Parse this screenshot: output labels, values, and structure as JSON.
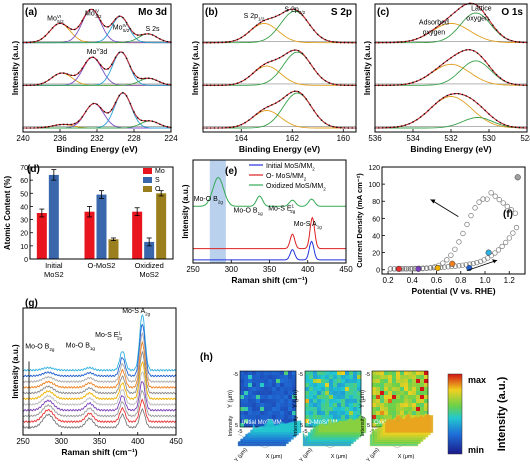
{
  "panels": {
    "a": {
      "letter": "(a)",
      "title": "Mo 3d",
      "xlabel": "Binding Energy (eV)",
      "ylabel": "Intensity (a.u.)",
      "xticks": [
        "240",
        "236",
        "232",
        "228",
        "224"
      ],
      "annotations": [
        {
          "base": "Mo",
          "sup": "VI",
          "tail": "3d",
          "sub": "5/2",
          "pre": "",
          "x": 236.5,
          "off": 0.87
        },
        {
          "base": "Mo",
          "sup": "IV",
          "tail": "3d",
          "sub": "3/2",
          "pre": "",
          "x": 232.4,
          "off": 0.91
        },
        {
          "base": "Mo",
          "sup": "IV",
          "tail": "3d",
          "sub": "5/2",
          "pre": "",
          "x": 229.4,
          "off": 0.8
        },
        {
          "base": "S 2s",
          "sup": "",
          "tail": "",
          "sub": "",
          "pre": "",
          "x": 226.0,
          "off": 0.79
        },
        {
          "base": "Mo",
          "sup": "V",
          "tail": "3d",
          "sub": "",
          "pre": "",
          "x": 232.0,
          "off": 0.61
        }
      ],
      "chart_data": {
        "type": "line",
        "xlim": [
          240,
          224
        ],
        "note": "three stacked XPS spectra with fitted components",
        "series": [
          {
            "peaks": [
              {
                "c": 236.0,
                "h": 0.55,
                "w": 1.1
              },
              {
                "c": 232.6,
                "h": 0.95,
                "w": 1.0
              },
              {
                "c": 229.5,
                "h": 0.75,
                "w": 0.9
              },
              {
                "c": 226.5,
                "h": 0.25,
                "w": 1.0
              }
            ]
          },
          {
            "peaks": [
              {
                "c": 235.8,
                "h": 0.35,
                "w": 1.1
              },
              {
                "c": 232.5,
                "h": 0.8,
                "w": 1.0
              },
              {
                "c": 229.4,
                "h": 0.95,
                "w": 0.9
              },
              {
                "c": 226.4,
                "h": 0.2,
                "w": 1.0
              }
            ]
          },
          {
            "peaks": [
              {
                "c": 235.7,
                "h": 0.1,
                "w": 1.1
              },
              {
                "c": 232.3,
                "h": 0.7,
                "w": 1.0
              },
              {
                "c": 229.2,
                "h": 1.0,
                "w": 0.9
              },
              {
                "c": 226.3,
                "h": 0.2,
                "w": 1.0
              }
            ]
          }
        ]
      }
    },
    "b": {
      "letter": "(b)",
      "title": "S 2p",
      "xlabel": "Binding Energy (eV)",
      "ylabel": "Intensity (a.u.)",
      "xticks": [
        "164",
        "162",
        "160"
      ],
      "annotations": [
        {
          "base": "S 2p",
          "sup": "",
          "tail": "",
          "sub": "1/2",
          "pre": "",
          "x": 163.5,
          "off": 0.89
        },
        {
          "base": "S 2p",
          "sup": "",
          "tail": "",
          "sub": "3/2",
          "pre": "",
          "x": 161.9,
          "off": 0.94
        }
      ],
      "chart_data": {
        "type": "line",
        "xlim": [
          165.5,
          159.5
        ],
        "note": "three stacked XPS spectra with fitted components",
        "series": [
          {
            "peaks": [
              {
                "c": 163.1,
                "h": 0.55,
                "w": 0.55
              },
              {
                "c": 161.9,
                "h": 0.9,
                "w": 0.55
              }
            ]
          },
          {
            "peaks": [
              {
                "c": 163.0,
                "h": 0.55,
                "w": 0.55
              },
              {
                "c": 161.8,
                "h": 0.95,
                "w": 0.55
              }
            ]
          },
          {
            "peaks": [
              {
                "c": 163.0,
                "h": 0.5,
                "w": 0.55
              },
              {
                "c": 161.8,
                "h": 1.0,
                "w": 0.55
              }
            ]
          }
        ]
      }
    },
    "c": {
      "letter": "(c)",
      "title": "O 1s",
      "xlabel": "Binding Energy (eV)",
      "ylabel": "Intensity (a.u.)",
      "xticks": [
        "536",
        "534",
        "532",
        "530",
        "528"
      ],
      "annotations": [
        {
          "base": "Lattice",
          "sup": "",
          "tail": "",
          "sub": "",
          "pre": "",
          "x": 530.4,
          "off": 0.95
        },
        {
          "base": "oxygen",
          "sup": "",
          "tail": "",
          "sub": "",
          "pre": "",
          "x": 530.6,
          "off": 0.87
        },
        {
          "base": "Adsorbed",
          "sup": "",
          "tail": "",
          "sub": "",
          "pre": "",
          "x": 532.9,
          "off": 0.84
        },
        {
          "base": "oxygen",
          "sup": "",
          "tail": "",
          "sub": "",
          "pre": "",
          "x": 532.9,
          "off": 0.76
        }
      ],
      "chart_data": {
        "type": "line",
        "xlim": [
          536,
          528
        ],
        "note": "three stacked XPS spectra with fitted components",
        "series": [
          {
            "peaks": [
              {
                "c": 532.0,
                "h": 0.55,
                "w": 1.0
              },
              {
                "c": 530.7,
                "h": 0.85,
                "w": 0.8
              }
            ]
          },
          {
            "peaks": [
              {
                "c": 532.0,
                "h": 0.6,
                "w": 1.0
              },
              {
                "c": 530.7,
                "h": 0.7,
                "w": 0.8
              }
            ]
          },
          {
            "peaks": [
              {
                "c": 532.0,
                "h": 0.9,
                "w": 1.1
              },
              {
                "c": 530.6,
                "h": 0.3,
                "w": 0.8
              }
            ]
          }
        ]
      }
    },
    "d": {
      "letter": "(d)",
      "ylabel": "Atomic Content (%)",
      "yticks": [
        "0",
        "10",
        "20",
        "30",
        "40",
        "50",
        "60",
        "70"
      ],
      "cat_labels": [
        [
          "Initial",
          "MoS2"
        ],
        [
          "O-MoS2",
          ""
        ],
        [
          "Oxidized",
          "MoS2"
        ]
      ],
      "legend": [
        "Mo",
        "S",
        "O"
      ],
      "chart_data": {
        "type": "bar",
        "ylim": [
          0,
          70
        ],
        "series": [
          {
            "color": "#e8141e",
            "values": [
              35,
              36,
              36
            ],
            "errors": [
              3,
              4,
              3
            ]
          },
          {
            "color": "#3a67ab",
            "values": [
              64,
              49,
              13
            ],
            "errors": [
              4,
              3,
              3
            ]
          },
          {
            "color": "#9b7f1e",
            "values": [
              0,
              15,
              50
            ],
            "errors": [
              0,
              1,
              2
            ]
          }
        ]
      }
    },
    "e": {
      "letter": "(e)",
      "xlabel": "Raman shift (cm⁻¹)",
      "ylabel": "Intensity (a.u.)",
      "xticks": [
        "250",
        "300",
        "350",
        "400",
        "450"
      ],
      "legend": [
        {
          "color": "#2233dd",
          "base": "Initial MoS",
          "sub": "2",
          "tail": "/MM"
        },
        {
          "color": "#dd2222",
          "base": "O- MoS",
          "sub": "2",
          "tail": "/MM"
        },
        {
          "color": "#33aa55",
          "base": "Oxidized MoS",
          "sub": "2",
          "tail": "/MM"
        }
      ],
      "annotations": [
        {
          "base": "Mo-O B",
          "sub": "2g",
          "sup": "",
          "x": 270,
          "off": 0.6
        },
        {
          "base": "Mo-O B",
          "sub": "1g",
          "sup": "",
          "x": 322,
          "off": 0.49
        },
        {
          "base": "Mo-S E",
          "sub": "2g",
          "sup": "1",
          "x": 366,
          "off": 0.51
        },
        {
          "base": "Mo-S A",
          "sub": "1g",
          "sup": "",
          "x": 400,
          "off": 0.36
        }
      ],
      "chart_data": {
        "type": "line",
        "xlim": [
          250,
          450
        ],
        "highlight_band": [
          272,
          293
        ],
        "series": [
          {
            "color": "#33aa55",
            "offset": 0.55,
            "peaks": [
              {
                "c": 283,
                "h": 0.28,
                "w": 7
              },
              {
                "c": 337,
                "h": 0.1,
                "w": 4
              },
              {
                "c": 380,
                "h": 0.06,
                "w": 4
              },
              {
                "c": 405,
                "h": 0.07,
                "w": 4
              }
            ]
          },
          {
            "color": "#dd2222",
            "offset": 0.14,
            "peaks": [
              {
                "c": 380,
                "h": 0.14,
                "w": 3
              },
              {
                "c": 406,
                "h": 0.3,
                "w": 3
              }
            ]
          },
          {
            "color": "#2233dd",
            "offset": 0.03,
            "peaks": [
              {
                "c": 380,
                "h": 0.1,
                "w": 3
              },
              {
                "c": 405,
                "h": 0.18,
                "w": 3
              }
            ]
          }
        ]
      }
    },
    "f": {
      "letter": "(f)",
      "xlabel": "Potential (V vs. RHE)",
      "ylabel": "Current Density (mA cm⁻²)",
      "xticks": [
        "0.2",
        "0.4",
        "0.6",
        "0.8",
        "1.0",
        "1.2"
      ],
      "yticks": [
        "0",
        "20",
        "40",
        "60",
        "80",
        "100",
        "120"
      ],
      "chart_data": {
        "type": "scatter",
        "xlim": [
          0.15,
          1.33
        ],
        "ylim": [
          -5,
          120
        ],
        "forward_sweep": {
          "x0": 0.22,
          "x1": 1.26,
          "n": 36
        },
        "reverse_sweep": {
          "x0": 1.25,
          "x1": 0.22,
          "n": 32
        },
        "markers": [
          {
            "x": 0.29,
            "y": 1,
            "color": "#e83030"
          },
          {
            "x": 0.45,
            "y": 1,
            "color": "#7a3fb8"
          },
          {
            "x": 0.61,
            "y": 2,
            "color": "#f0b000"
          },
          {
            "x": 0.73,
            "y": 7,
            "color": "#f08020"
          },
          {
            "x": 0.87,
            "y": 2,
            "color": "#2060d0"
          },
          {
            "x": 1.03,
            "y": 20,
            "color": "#30b0e0"
          },
          {
            "x": 1.27,
            "y": 108,
            "color": "#a0a0a0"
          }
        ]
      }
    },
    "g": {
      "letter": "(g)",
      "xlabel": "Raman shift (cm⁻¹)",
      "ylabel": "Intensity (a.u.)",
      "xticks": [
        "250",
        "300",
        "350",
        "400",
        "450"
      ],
      "annotations": [
        {
          "base": "Mo-O B",
          "sub": "2g",
          "sup": "",
          "x": 272,
          "off": 0.68
        },
        {
          "base": "Mo-O B",
          "sub": "1g",
          "sup": "",
          "x": 325,
          "off": 0.69
        },
        {
          "base": "Mo-S E",
          "sub": "2g",
          "sup": "1",
          "x": 362,
          "off": 0.77
        },
        {
          "base": "Mo-S A",
          "sub": "2g",
          "sup": "",
          "x": 398,
          "off": 0.96
        }
      ],
      "chart_data": {
        "type": "line",
        "xlim": [
          250,
          450
        ],
        "n_traces": 11,
        "peaks": [
          {
            "c": 283,
            "w": 7
          },
          {
            "c": 337,
            "w": 5
          },
          {
            "c": 380,
            "w": 3.5
          },
          {
            "c": 406,
            "w": 3.5
          }
        ]
      }
    },
    "h": {
      "letter": "(h)",
      "maps": [
        {
          "base": "Initial MoS",
          "sub": "2",
          "tail": "/MM"
        },
        {
          "base": "O-MoS",
          "sub": "2",
          "tail": "/MM"
        },
        {
          "base": "Oxidized MoS",
          "sub": "2",
          "tail": "/MM"
        }
      ],
      "axis_x": "X (μm)",
      "axis_y": "Y (μm)",
      "tick_lo": "-5",
      "tick_hi": "5",
      "surf_z": "Intensity",
      "surf_x": "X (μm)",
      "surf_y": "Y (μm)",
      "colorbar": {
        "max": "max",
        "min": "min",
        "label": "Intensity (a.u.)"
      }
    }
  }
}
